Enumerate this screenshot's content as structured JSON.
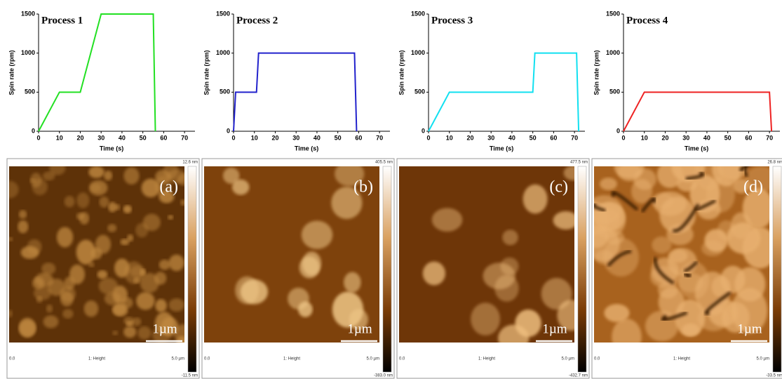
{
  "chart_data": [
    {
      "type": "line",
      "title": "Process 1",
      "x_label": "Time (s)",
      "y_label": "Spin rate (rpm)",
      "color": "#22e022",
      "x": [
        0,
        10,
        20,
        30,
        55,
        56
      ],
      "values": [
        0,
        500,
        500,
        1500,
        1500,
        0
      ],
      "xlim": [
        0,
        75
      ],
      "ylim": [
        0,
        1500
      ],
      "xticks": [
        0,
        10,
        20,
        30,
        40,
        50,
        60,
        70
      ],
      "yticks": [
        0,
        500,
        1000,
        1500
      ]
    },
    {
      "type": "line",
      "title": "Process 2",
      "x_label": "Time (s)",
      "y_label": "Spin rate (rpm)",
      "color": "#2222cc",
      "x": [
        0,
        1,
        11,
        12,
        58,
        59
      ],
      "values": [
        0,
        500,
        500,
        1000,
        1000,
        0
      ],
      "xlim": [
        0,
        75
      ],
      "ylim": [
        0,
        1500
      ],
      "xticks": [
        0,
        10,
        20,
        30,
        40,
        50,
        60,
        70
      ],
      "yticks": [
        0,
        500,
        1000,
        1500
      ]
    },
    {
      "type": "line",
      "title": "Process 3",
      "x_label": "Time (s)",
      "y_label": "Spin rate (rpm)",
      "color": "#11e0f0",
      "x": [
        0,
        10,
        50,
        51,
        71,
        72
      ],
      "values": [
        0,
        500,
        500,
        1000,
        1000,
        0
      ],
      "xlim": [
        0,
        75
      ],
      "ylim": [
        0,
        1500
      ],
      "xticks": [
        0,
        10,
        20,
        30,
        40,
        50,
        60,
        70
      ],
      "yticks": [
        0,
        500,
        1000,
        1500
      ]
    },
    {
      "type": "line",
      "title": "Process 4",
      "x_label": "Time (s)",
      "y_label": "Spin rate (rpm)",
      "color": "#ee2222",
      "x": [
        0,
        10,
        70,
        71
      ],
      "values": [
        0,
        500,
        500,
        0
      ],
      "xlim": [
        0,
        75
      ],
      "ylim": [
        0,
        1500
      ],
      "xticks": [
        0,
        10,
        20,
        30,
        40,
        50,
        60,
        70
      ],
      "yticks": [
        0,
        500,
        1000,
        1500
      ]
    }
  ],
  "panels": [
    {
      "label": "(a)",
      "scale": "1µm",
      "max": "12.6 nm",
      "min": "-11.5 nm",
      "x_start": "0.0",
      "x_end": "5.0 µm",
      "channel": "1: Height"
    },
    {
      "label": "(b)",
      "scale": "1µm",
      "max": "405.5 nm",
      "min": "-383.0 nm",
      "x_start": "0.0",
      "x_end": "5.0 µm",
      "channel": "1: Height"
    },
    {
      "label": "(c)",
      "scale": "1µm",
      "max": "477.5 nm",
      "min": "-432.7 nm",
      "x_start": "0.0",
      "x_end": "5.0 µm",
      "channel": "1: Height"
    },
    {
      "label": "(d)",
      "scale": "1µm",
      "max": "26.8 nm",
      "min": "-33.5 nm",
      "x_start": "0.0",
      "x_end": "5.0 µm",
      "channel": "1: Height"
    }
  ]
}
